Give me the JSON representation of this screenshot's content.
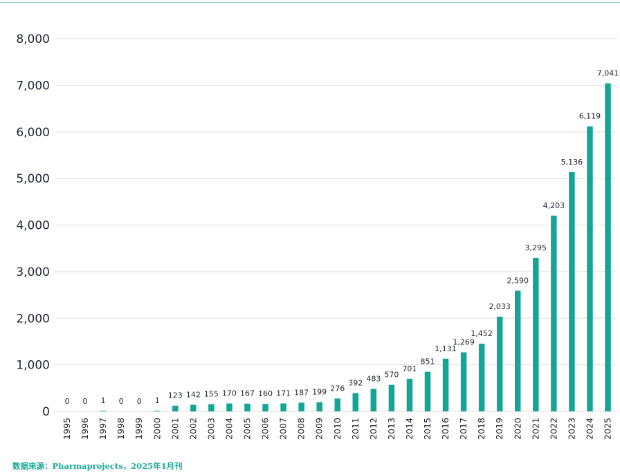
{
  "chart_data": {
    "type": "bar",
    "categories": [
      "1995",
      "1996",
      "1997",
      "1998",
      "1999",
      "2000",
      "2001",
      "2002",
      "2003",
      "2004",
      "2005",
      "2006",
      "2007",
      "2008",
      "2009",
      "2010",
      "2011",
      "2012",
      "2013",
      "2014",
      "2015",
      "2016",
      "2017",
      "2018",
      "2019",
      "2020",
      "2021",
      "2022",
      "2023",
      "2024",
      "2025"
    ],
    "values": [
      0,
      0,
      1,
      0,
      0,
      1,
      123,
      142,
      155,
      170,
      167,
      160,
      171,
      187,
      199,
      276,
      392,
      483,
      570,
      701,
      851,
      1131,
      1269,
      1452,
      2033,
      2590,
      3295,
      4203,
      5136,
      6119,
      7041
    ],
    "value_labels": [
      "0",
      "0",
      "1",
      "0",
      "0",
      "1",
      "123",
      "142",
      "155",
      "170",
      "167",
      "160",
      "171",
      "187",
      "199",
      "276",
      "392",
      "483",
      "570",
      "701",
      "851",
      "1,131",
      "1,269",
      "1,452",
      "2,033",
      "2,590",
      "3,295",
      "4,203",
      "5,136",
      "6,119",
      "7,041"
    ],
    "title": "",
    "xlabel": "",
    "ylabel": "",
    "ylim": [
      0,
      8000
    ],
    "y_ticks": [
      0,
      1000,
      2000,
      3000,
      4000,
      5000,
      6000,
      7000,
      8000
    ],
    "y_tick_labels": [
      "0",
      "1,000",
      "2,000",
      "3,000",
      "4,000",
      "5,000",
      "6,000",
      "7,000",
      "8,000"
    ],
    "grid": true,
    "legend": "none",
    "colors": {
      "bar": "#13a697",
      "grid": "#dddddd",
      "text": "#1f2333",
      "accent_rule": "#8fd3c8"
    }
  },
  "source_note": "数据来源：Pharmaprojects，2025年1月刊"
}
